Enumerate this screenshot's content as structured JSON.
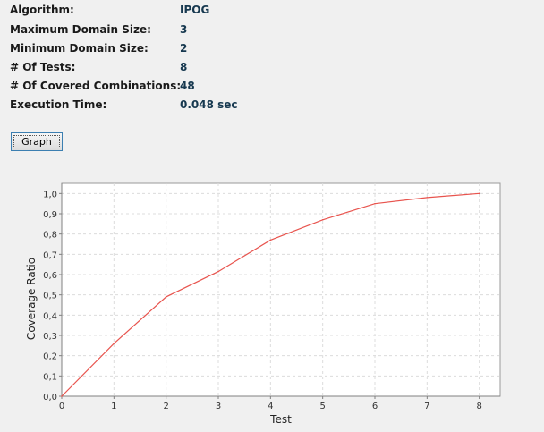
{
  "info": {
    "algorithm_label": "Algorithm:",
    "algorithm_value": "IPOG",
    "max_domain_label": "Maximum Domain Size:",
    "max_domain_value": "3",
    "min_domain_label": "Minimum Domain Size:",
    "min_domain_value": "2",
    "tests_label": "# Of Tests:",
    "tests_value": "8",
    "combinations_label": "# Of Covered Combinations:",
    "combinations_value": "48",
    "exec_time_label": "Execution Time:",
    "exec_time_value": "0.048 sec"
  },
  "graph_button_label": "Graph",
  "chart_data": {
    "type": "line",
    "title": "",
    "xlabel": "Test",
    "ylabel": "Coverage Ratio",
    "xlim": [
      0,
      8.4
    ],
    "ylim": [
      0,
      1.05
    ],
    "x_ticks": [
      0,
      1,
      2,
      3,
      4,
      5,
      6,
      7,
      8
    ],
    "x_tick_labels": [
      "0",
      "1",
      "2",
      "3",
      "4",
      "5",
      "6",
      "7",
      "8"
    ],
    "y_ticks": [
      0,
      0.1,
      0.2,
      0.3,
      0.4,
      0.5,
      0.6,
      0.7,
      0.8,
      0.9,
      1.0
    ],
    "y_tick_labels": [
      "0,0",
      "0,1",
      "0,2",
      "0,3",
      "0,4",
      "0,5",
      "0,6",
      "0,7",
      "0,8",
      "0,9",
      "1,0"
    ],
    "grid": true,
    "legend": "none",
    "line_color": "#e8544e",
    "series": [
      {
        "x": [
          0,
          1,
          2,
          3,
          4,
          5,
          6,
          7,
          8
        ],
        "values": [
          0.0,
          0.26,
          0.49,
          0.615,
          0.77,
          0.87,
          0.95,
          0.98,
          1.0
        ]
      }
    ]
  }
}
